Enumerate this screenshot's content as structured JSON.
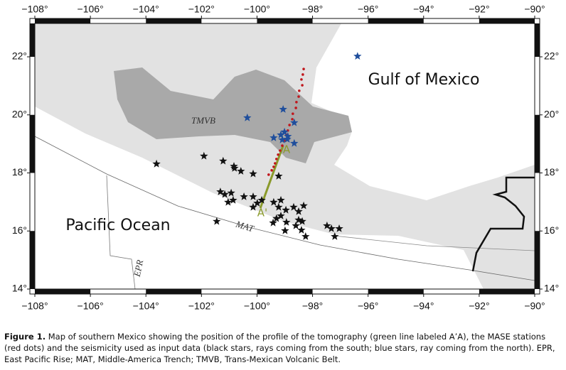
{
  "map": {
    "type": "scatter",
    "xlim": [
      -108,
      -90
    ],
    "ylim": [
      14,
      23.15
    ],
    "xticks": [
      {
        "value": -108,
        "label": "−108°"
      },
      {
        "value": -106,
        "label": "−106°"
      },
      {
        "value": -104,
        "label": "−104°"
      },
      {
        "value": -102,
        "label": "−102°"
      },
      {
        "value": -100,
        "label": "−100°"
      },
      {
        "value": -98,
        "label": "−98°"
      },
      {
        "value": -96,
        "label": "−96°"
      },
      {
        "value": -94,
        "label": "−94°"
      },
      {
        "value": -92,
        "label": "−92°"
      },
      {
        "value": -90,
        "label": "−90°"
      }
    ],
    "yticks": [
      {
        "value": 14,
        "label": "14°"
      },
      {
        "value": 16,
        "label": "16°"
      },
      {
        "value": 18,
        "label": "18°"
      },
      {
        "value": 20,
        "label": "20°"
      },
      {
        "value": 22,
        "label": "22°"
      }
    ],
    "region_labels": {
      "gulf": "Gulf of Mexico",
      "pacific": "Pacific Ocean",
      "tmvb": "TMVB",
      "mat": "MAT",
      "epr": "EPR",
      "a": "A",
      "a_prime": "A'"
    },
    "black_stars": {
      "color": "#111111",
      "x": [
        -103.62,
        -101.91,
        -101.22,
        -100.81,
        -100.58,
        -100.14,
        -100.83,
        -99.22,
        -101.32,
        -101.16,
        -100.93,
        -101.04,
        -100.86,
        -100.47,
        -100.14,
        -100.14,
        -99.99,
        -99.83,
        -99.4,
        -99.14,
        -99.22,
        -98.96,
        -99.14,
        -99.3,
        -99.42,
        -98.94,
        -98.68,
        -98.5,
        -98.32,
        -98.5,
        -98.37,
        -98.6,
        -98.4,
        -98.99,
        -98.25,
        -97.48,
        -97.32,
        -97.04,
        -97.2,
        -101.45
      ],
      "y": [
        18.31,
        18.58,
        18.41,
        18.16,
        18.06,
        17.97,
        18.23,
        17.89,
        17.35,
        17.26,
        17.31,
        16.99,
        17.06,
        17.18,
        17.18,
        16.82,
        16.96,
        17.06,
        16.99,
        17.06,
        16.82,
        16.72,
        16.52,
        16.43,
        16.28,
        16.3,
        16.82,
        16.67,
        16.87,
        16.38,
        16.33,
        16.18,
        16.03,
        16.01,
        15.81,
        16.18,
        16.08,
        16.08,
        15.81,
        16.33
      ]
    },
    "blue_stars": {
      "color": "#1f4e9c",
      "x": [
        -96.38,
        -100.35,
        -99.06,
        -98.66,
        -99.4,
        -99.14,
        -99.01,
        -98.89,
        -99.09,
        -98.66,
        -98.91
      ],
      "y": [
        22.02,
        19.9,
        20.19,
        19.73,
        19.21,
        19.31,
        19.41,
        19.26,
        19.14,
        19.02,
        19.16
      ]
    },
    "stations": {
      "color": "#c0171d",
      "x": [
        -98.32,
        -98.35,
        -98.4,
        -98.37,
        -98.48,
        -98.5,
        -98.58,
        -98.6,
        -98.71,
        -98.73,
        -98.83,
        -98.89,
        -98.94,
        -99.01,
        -99.09,
        -99.17,
        -99.24,
        -99.3,
        -99.35,
        -99.4,
        -99.47,
        -99.58
      ],
      "y": [
        21.58,
        21.39,
        21.22,
        21.02,
        20.83,
        20.63,
        20.44,
        20.24,
        20.04,
        19.85,
        19.65,
        19.46,
        19.31,
        19.11,
        18.94,
        18.77,
        18.63,
        18.48,
        18.33,
        18.21,
        18.09,
        17.94
      ]
    },
    "profile": {
      "color": "#8a9a2b",
      "x": [
        -99.06,
        -99.88
      ],
      "y": [
        18.94,
        16.79
      ]
    }
  },
  "caption": {
    "label": "Figure 1.",
    "text": "Map of southern Mexico showing the position of the profile of the tomography (green line labeled A’A), the MASE stations (red dots) and the seismicity used as input data (black stars, rays coming from the south; blue stars, ray coming from the north). EPR, East Pacific Rise; MAT, Middle-America Trench; TMVB, Trans-Mexican Volcanic Belt."
  }
}
